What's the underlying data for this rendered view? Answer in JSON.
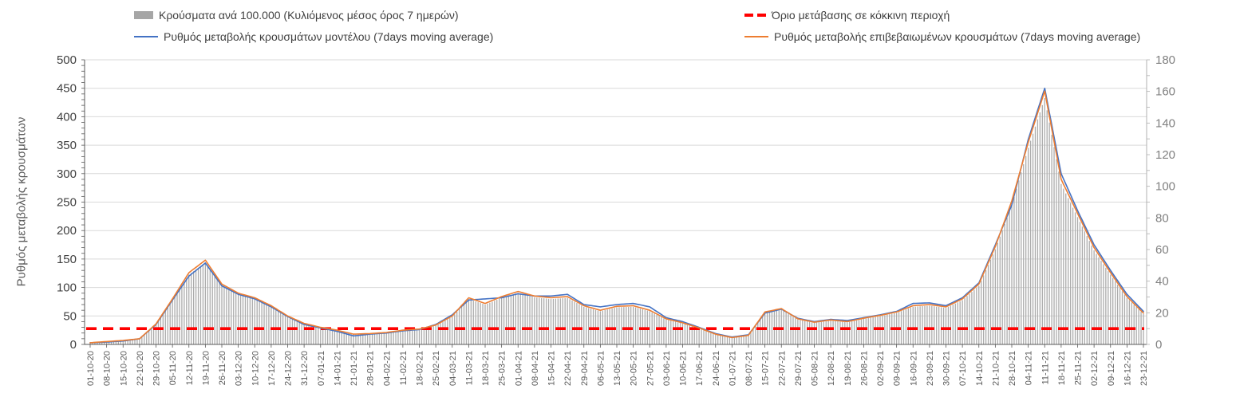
{
  "legend": {
    "items": [
      {
        "label": "Κρούσματα ανά 100.000 (Κυλιόμενος μέσος όρος 7 ημερών)",
        "swatch": "bar",
        "color": "#a6a6a6"
      },
      {
        "label": "Ρυθμός μεταβολής κρουσμάτων μοντέλου (7days moving average)",
        "swatch": "line",
        "color": "#4472c4"
      },
      {
        "label": "Όριο μετάβασης σε κόκκινη περιοχή",
        "swatch": "dashed-line",
        "color": "#ff0000"
      },
      {
        "label": "Ρυθμός μεταβολής επιβεβαιωμένων κρουσμάτων (7days moving average)",
        "swatch": "line",
        "color": "#ed7d31"
      }
    ]
  },
  "chart_data": {
    "type": "bar+line",
    "title": "",
    "ylabel": "Ρυθμός μεταβολής κρουσμάτων",
    "xlabel": "",
    "grid": "horizontal",
    "legend_position": "top",
    "left_axis": {
      "min": 0,
      "max": 500,
      "step": 50,
      "minor_step": 10
    },
    "right_axis": {
      "min": 0,
      "max": 180,
      "step": 20,
      "minor_step": 10
    },
    "x_tick_labels": [
      "01-10-20",
      "08-10-20",
      "15-10-20",
      "22-10-20",
      "29-10-20",
      "05-11-20",
      "12-11-20",
      "19-11-20",
      "26-11-20",
      "03-12-20",
      "10-12-20",
      "17-12-20",
      "24-12-20",
      "31-12-20",
      "07-01-21",
      "14-01-21",
      "21-01-21",
      "28-01-21",
      "04-02-21",
      "11-02-21",
      "18-02-21",
      "25-02-21",
      "04-03-21",
      "11-03-21",
      "18-03-21",
      "25-03-21",
      "01-04-21",
      "08-04-21",
      "15-04-21",
      "22-04-21",
      "29-04-21",
      "06-05-21",
      "13-05-21",
      "20-05-21",
      "27-05-21",
      "03-06-21",
      "10-06-21",
      "17-06-21",
      "24-06-21",
      "01-07-21",
      "08-07-21",
      "15-07-21",
      "22-07-21",
      "29-07-21",
      "05-08-21",
      "12-08-21",
      "19-08-21",
      "26-08-21",
      "02-09-21",
      "09-09-21",
      "16-09-21",
      "23-09-21",
      "30-09-21",
      "07-10-21",
      "14-10-21",
      "21-10-21",
      "28-10-21",
      "04-11-21",
      "11-11-21",
      "18-11-21",
      "25-11-21",
      "02-12-21",
      "09-12-21",
      "16-12-21",
      "23-12-21"
    ],
    "series": [
      {
        "name": "Κρούσματα ανά 100.000 (Κυλιόμενος μέσος όρος 7 ημερών)",
        "type": "bar",
        "axis": "right",
        "color": "#ababab",
        "values": [
          1.1,
          1.8,
          2.5,
          3.5,
          12.6,
          28,
          44.1,
          51.8,
          37.1,
          31.5,
          28.7,
          23.8,
          17.5,
          13,
          10.5,
          8.8,
          6.3,
          6.7,
          7.4,
          8.8,
          9.5,
          11.9,
          17.5,
          28.7,
          25.2,
          29.4,
          32.6,
          29.8,
          28.7,
          29.4,
          23.8,
          21,
          23.5,
          23.8,
          21,
          15.8,
          13.3,
          10.2,
          6.3,
          4.2,
          5.6,
          20,
          22.1,
          15.8,
          13.7,
          15.1,
          14,
          16.1,
          17.9,
          20,
          23.8,
          24.5,
          23.1,
          28,
          37.1,
          60.2,
          88.2,
          124.3,
          155.8,
          101.5,
          80.5,
          59.5,
          44.1,
          29.4,
          19.3
        ]
      },
      {
        "name": "Ρυθμός μεταβολής κρουσμάτων μοντέλου (7days moving average)",
        "type": "line",
        "axis": "left",
        "color": "#4472c4",
        "values": [
          3,
          4,
          6,
          10,
          35,
          78,
          120,
          143,
          103,
          88,
          80,
          66,
          49,
          35,
          29,
          23,
          15,
          18,
          20,
          24,
          26,
          35,
          52,
          78,
          80,
          82,
          89,
          85,
          85,
          88,
          70,
          66,
          70,
          72,
          66,
          47,
          40,
          30,
          19,
          13,
          17,
          55,
          62,
          46,
          40,
          44,
          42,
          47,
          52,
          58,
          72,
          73,
          68,
          82,
          108,
          175,
          245,
          360,
          450,
          300,
          235,
          175,
          130,
          88,
          58
        ]
      },
      {
        "name": "Ρυθμός μεταβολής επιβεβαιωμένων κρουσμάτων (7days moving average)",
        "type": "line",
        "axis": "left",
        "color": "#ed7d31",
        "values": [
          3,
          5,
          7,
          10,
          36,
          80,
          126,
          148,
          106,
          90,
          82,
          68,
          50,
          37,
          30,
          25,
          18,
          19,
          21,
          25,
          27,
          34,
          50,
          82,
          72,
          84,
          93,
          85,
          82,
          84,
          68,
          60,
          67,
          68,
          60,
          45,
          38,
          29,
          18,
          12,
          16,
          57,
          63,
          45,
          39,
          43,
          40,
          46,
          51,
          57,
          68,
          70,
          66,
          80,
          106,
          172,
          252,
          355,
          445,
          290,
          230,
          170,
          126,
          84,
          55
        ]
      }
    ],
    "threshold": {
      "name": "Όριο μετάβασης σε κόκκινη περιοχή",
      "axis": "right",
      "value": 10,
      "color": "#ff0000",
      "style": "dashed"
    }
  },
  "colors": {
    "gridline": "#d9d9d9",
    "axis_dark": "#595959",
    "axis_light": "#b0b0b0",
    "left_tick_label": "#404040",
    "right_tick_label": "#808080",
    "date_label": "#595959"
  }
}
